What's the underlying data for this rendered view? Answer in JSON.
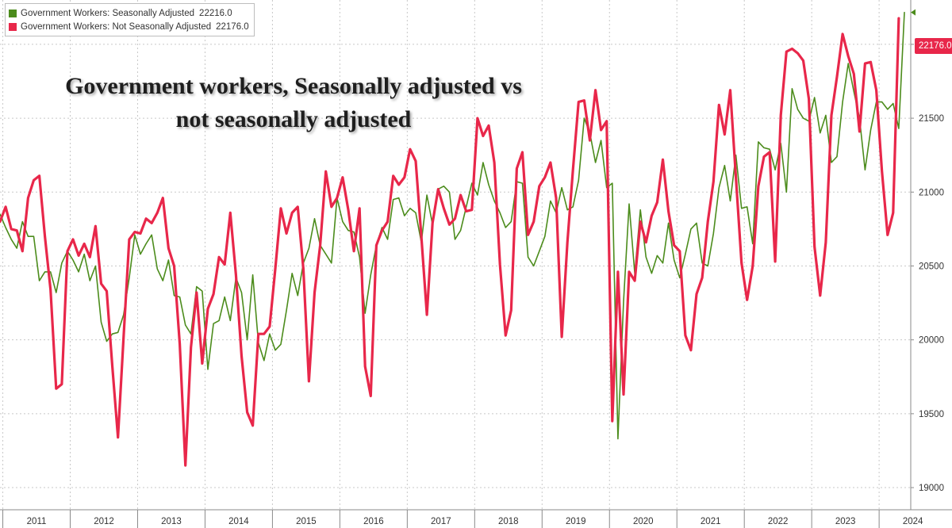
{
  "chart_data": {
    "type": "line",
    "title": "Government workers, Seasonally adjusted vs not seasonally adjusted",
    "x_labels": [
      "2011",
      "2012",
      "2013",
      "2014",
      "2015",
      "2016",
      "2017",
      "2018",
      "2019",
      "2020",
      "2021",
      "2022",
      "2023",
      "2024"
    ],
    "x_range": [
      "2010-12",
      "2024-04"
    ],
    "y_ticks": [
      19000,
      19500,
      20000,
      20500,
      21000,
      21500,
      22000
    ],
    "y_range": [
      18850,
      22300
    ],
    "y_axis_position": "right",
    "grid": true,
    "legend_position": "top-left",
    "last_value_badge": "22176.0",
    "series": [
      {
        "name": "Government Workers: Seasonally Adjusted",
        "last_value": "22216.0",
        "color": "#4c8c1c",
        "values": [
          20850,
          20760,
          20680,
          20620,
          20800,
          20700,
          20700,
          20400,
          20460,
          20460,
          20320,
          20520,
          20600,
          20540,
          20460,
          20580,
          20400,
          20500,
          20120,
          19990,
          20040,
          20050,
          20170,
          20420,
          20710,
          20580,
          20650,
          20710,
          20480,
          20400,
          20540,
          20300,
          20290,
          20100,
          20040,
          20360,
          20330,
          19800,
          20110,
          20130,
          20290,
          20130,
          20420,
          20320,
          20000,
          20440,
          19980,
          19860,
          20040,
          19930,
          19970,
          20200,
          20450,
          20300,
          20520,
          20620,
          20820,
          20640,
          20580,
          20520,
          20960,
          20800,
          20740,
          20730,
          20560,
          20180,
          20440,
          20640,
          20760,
          20680,
          20950,
          20960,
          20840,
          20890,
          20860,
          20660,
          20980,
          20780,
          21020,
          21040,
          21000,
          20680,
          20740,
          20900,
          21060,
          20980,
          21200,
          21050,
          20940,
          20860,
          20760,
          20800,
          21070,
          21060,
          20560,
          20500,
          20600,
          20700,
          20940,
          20860,
          21030,
          20880,
          20900,
          21080,
          21500,
          21400,
          21200,
          21350,
          21030,
          21060,
          19330,
          20260,
          20920,
          20450,
          20880,
          20560,
          20450,
          20570,
          20520,
          20790,
          20540,
          20420,
          20580,
          20750,
          20790,
          20520,
          20500,
          20720,
          21030,
          21180,
          20940,
          21250,
          20890,
          20900,
          20650,
          21340,
          21300,
          21290,
          21150,
          21330,
          21000,
          21700,
          21560,
          21500,
          21480,
          21640,
          21400,
          21520,
          21200,
          21240,
          21610,
          21870,
          21680,
          21500,
          21150,
          21420,
          21610,
          21610,
          21560,
          21600,
          21430,
          22216
        ]
      },
      {
        "name": "Government Workers: Not Seasonally Adjusted",
        "last_value": "22176.0",
        "color": "#e8274a",
        "values": [
          20800,
          20900,
          20750,
          20740,
          20600,
          20960,
          21080,
          21110,
          20700,
          20340,
          19670,
          19700,
          20600,
          20680,
          20570,
          20650,
          20560,
          20770,
          20380,
          20330,
          19820,
          19340,
          20020,
          20680,
          20730,
          20720,
          20820,
          20790,
          20860,
          20960,
          20620,
          20500,
          19970,
          19150,
          19950,
          20320,
          19840,
          20210,
          20310,
          20560,
          20510,
          20860,
          20440,
          19890,
          19510,
          19420,
          20040,
          20040,
          20090,
          20480,
          20890,
          20720,
          20860,
          20900,
          20480,
          19720,
          20320,
          20640,
          21140,
          20900,
          20960,
          21100,
          20880,
          20600,
          20890,
          19820,
          19620,
          20640,
          20740,
          20800,
          21110,
          21050,
          21100,
          21290,
          21210,
          20700,
          20170,
          20790,
          21020,
          20890,
          20780,
          20820,
          20980,
          20870,
          20880,
          21500,
          21380,
          21450,
          21200,
          20510,
          20030,
          20200,
          21160,
          21270,
          20710,
          20800,
          21040,
          21100,
          21200,
          20960,
          20020,
          20660,
          21150,
          21610,
          21620,
          21350,
          21690,
          21420,
          21480,
          19450,
          20460,
          19630,
          20460,
          20400,
          20800,
          20660,
          20840,
          20930,
          21220,
          20870,
          20640,
          20600,
          20030,
          19930,
          20310,
          20420,
          20800,
          21070,
          21590,
          21390,
          21690,
          21100,
          20520,
          20270,
          20500,
          21040,
          21240,
          21270,
          20530,
          21520,
          21950,
          21970,
          21940,
          21890,
          21630,
          20630,
          20300,
          20660,
          21520,
          21780,
          22070,
          21920,
          21800,
          21410,
          21870,
          21880,
          21690,
          21140,
          20710,
          20860,
          22176
        ]
      }
    ]
  }
}
